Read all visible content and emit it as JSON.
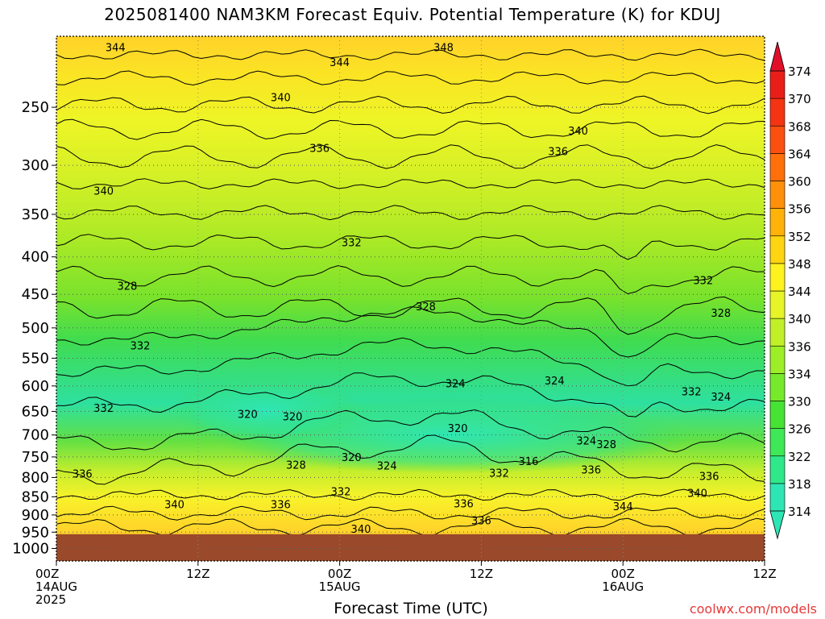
{
  "title": "2025081400 NAM3KM Forecast Equiv. Potential Temperature (K) for KDUJ",
  "xlabel": "Forecast Time (UTC)",
  "credit": "coolwx.com/models",
  "chart_data": {
    "type": "heatmap",
    "title": "2025081400 NAM3KM Forecast Equiv. Potential Temperature (K) for KDUJ",
    "xlabel": "Forecast Time (UTC)",
    "ylabel": "",
    "x_range_hours": [
      0,
      60
    ],
    "x_ticks": [
      {
        "hour": 0,
        "lines": [
          "00Z",
          "14AUG",
          "2025"
        ]
      },
      {
        "hour": 12,
        "lines": [
          "12Z"
        ]
      },
      {
        "hour": 24,
        "lines": [
          "00Z",
          "15AUG"
        ]
      },
      {
        "hour": 36,
        "lines": [
          "12Z"
        ]
      },
      {
        "hour": 48,
        "lines": [
          "00Z",
          "16AUG"
        ]
      },
      {
        "hour": 60,
        "lines": [
          "12Z"
        ]
      }
    ],
    "y_axis": "pressure (hPa), reversed, log scale",
    "y_range": [
      1040,
      200
    ],
    "y_ticks": [
      250,
      300,
      350,
      400,
      450,
      500,
      550,
      600,
      650,
      700,
      750,
      800,
      850,
      900,
      950,
      1000
    ],
    "grid": true,
    "surface_pressure_approx": 956,
    "colorbar": {
      "levels": [
        314,
        318,
        322,
        326,
        330,
        334,
        336,
        340,
        344,
        348,
        352,
        356,
        360,
        364,
        368,
        370,
        374
      ],
      "colors": [
        "#2de6b4",
        "#2ee88a",
        "#3ee856",
        "#46e234",
        "#76ea2a",
        "#9cee26",
        "#c2f028",
        "#e6f428",
        "#fff21e",
        "#ffd410",
        "#ffb20a",
        "#ff900a",
        "#ff700a",
        "#fc5010",
        "#f43412",
        "#ea1e18",
        "#e0102a"
      ]
    },
    "contour_labels": [
      {
        "t": 5.0,
        "p": 207,
        "v": "344"
      },
      {
        "t": 24.0,
        "p": 217,
        "v": "344"
      },
      {
        "t": 32.8,
        "p": 207,
        "v": "348"
      },
      {
        "t": 19.0,
        "p": 242,
        "v": "340"
      },
      {
        "t": 44.2,
        "p": 269,
        "v": "340"
      },
      {
        "t": 22.3,
        "p": 284,
        "v": "336"
      },
      {
        "t": 42.5,
        "p": 287,
        "v": "336"
      },
      {
        "t": 4.0,
        "p": 325,
        "v": "340"
      },
      {
        "t": 25.0,
        "p": 382,
        "v": "332"
      },
      {
        "t": 54.8,
        "p": 430,
        "v": "332"
      },
      {
        "t": 6.0,
        "p": 438,
        "v": "328"
      },
      {
        "t": 31.3,
        "p": 467,
        "v": "328"
      },
      {
        "t": 56.3,
        "p": 477,
        "v": "328"
      },
      {
        "t": 7.1,
        "p": 528,
        "v": "332"
      },
      {
        "t": 33.8,
        "p": 595,
        "v": "324"
      },
      {
        "t": 42.2,
        "p": 590,
        "v": "324"
      },
      {
        "t": 53.8,
        "p": 610,
        "v": "332"
      },
      {
        "t": 56.3,
        "p": 620,
        "v": "324"
      },
      {
        "t": 16.2,
        "p": 655,
        "v": "320"
      },
      {
        "t": 20.0,
        "p": 660,
        "v": "320"
      },
      {
        "t": 4.0,
        "p": 643,
        "v": "332"
      },
      {
        "t": 34.0,
        "p": 685,
        "v": "320"
      },
      {
        "t": 25.0,
        "p": 750,
        "v": "320"
      },
      {
        "t": 40.0,
        "p": 760,
        "v": "316"
      },
      {
        "t": 44.9,
        "p": 712,
        "v": "324"
      },
      {
        "t": 46.6,
        "p": 720,
        "v": "328"
      },
      {
        "t": 20.3,
        "p": 768,
        "v": "328"
      },
      {
        "t": 28.0,
        "p": 770,
        "v": "324"
      },
      {
        "t": 37.5,
        "p": 788,
        "v": "332"
      },
      {
        "t": 45.3,
        "p": 780,
        "v": "336"
      },
      {
        "t": 2.2,
        "p": 790,
        "v": "336"
      },
      {
        "t": 55.3,
        "p": 796,
        "v": "336"
      },
      {
        "t": 24.1,
        "p": 835,
        "v": "332"
      },
      {
        "t": 54.3,
        "p": 840,
        "v": "340"
      },
      {
        "t": 19.0,
        "p": 870,
        "v": "336"
      },
      {
        "t": 34.5,
        "p": 868,
        "v": "336"
      },
      {
        "t": 10.0,
        "p": 870,
        "v": "340"
      },
      {
        "t": 48.0,
        "p": 875,
        "v": "344"
      },
      {
        "t": 36.0,
        "p": 915,
        "v": "336"
      },
      {
        "t": 25.8,
        "p": 940,
        "v": "340"
      }
    ]
  }
}
